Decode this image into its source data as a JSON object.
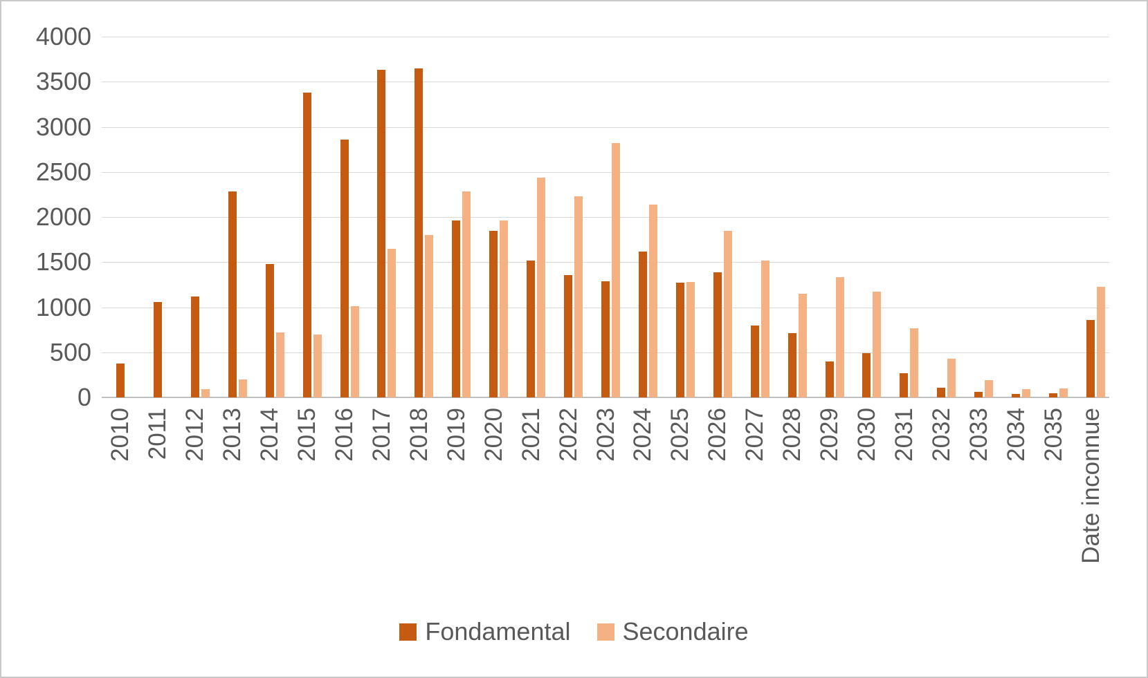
{
  "chart_data": {
    "type": "bar",
    "title": "",
    "xlabel": "",
    "ylabel": "",
    "categories": [
      "2010",
      "2011",
      "2012",
      "2013",
      "2014",
      "2015",
      "2016",
      "2017",
      "2018",
      "2019",
      "2020",
      "2021",
      "2022",
      "2023",
      "2024",
      "2025",
      "2026",
      "2027",
      "2028",
      "2029",
      "2030",
      "2031",
      "2032",
      "2033",
      "2034",
      "2035",
      "Date inconnue"
    ],
    "series": [
      {
        "name": "Fondamental",
        "color": "#C55A11",
        "values": [
          375,
          1060,
          1120,
          2280,
          1480,
          3380,
          2860,
          3630,
          3650,
          1960,
          1850,
          1520,
          1360,
          1290,
          1620,
          1270,
          1390,
          800,
          710,
          400,
          490,
          265,
          110,
          60,
          40,
          45,
          860
        ]
      },
      {
        "name": "Secondaire",
        "color": "#F4B183",
        "values": [
          0,
          0,
          95,
          200,
          720,
          700,
          1010,
          1650,
          1800,
          2280,
          1960,
          2440,
          2230,
          2820,
          2140,
          1280,
          1850,
          1520,
          1150,
          1330,
          1170,
          770,
          430,
          195,
          95,
          100,
          1230
        ]
      }
    ],
    "ylim": [
      0,
      4000
    ],
    "yticks": [
      0,
      500,
      1000,
      1500,
      2000,
      2500,
      3000,
      3500,
      4000
    ],
    "grid": true,
    "legend_position": "bottom",
    "x_label_rotation_deg": -90
  },
  "colors": {
    "gridline": "#D9D9D9",
    "axis_line": "#BFBFBF",
    "text": "#595959",
    "frame_border": "#C9C9C9",
    "background": "#FFFFFF"
  }
}
